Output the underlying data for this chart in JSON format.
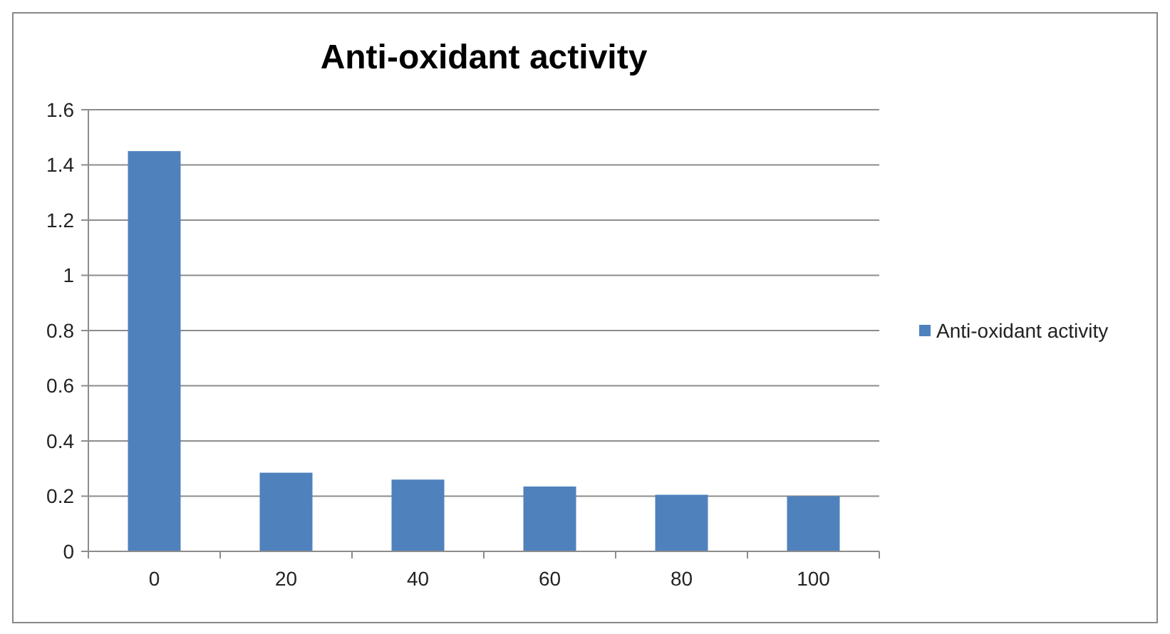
{
  "chart_data": {
    "type": "bar",
    "title": "Anti-oxidant activity",
    "categories": [
      "0",
      "20",
      "40",
      "60",
      "80",
      "100"
    ],
    "series": [
      {
        "name": "Anti-oxidant activity",
        "color": "#4f81bd",
        "values": [
          1.45,
          0.285,
          0.26,
          0.235,
          0.205,
          0.2
        ]
      }
    ],
    "ylim": [
      0,
      1.6
    ],
    "yticks": [
      0,
      {
        "value": 0.2,
        "label": "0.2"
      },
      {
        "value": 0.4,
        "label": "0.4"
      },
      {
        "value": 0.6,
        "label": "0.6"
      },
      {
        "value": 0.8,
        "label": "0.8"
      },
      1,
      {
        "value": 1.2,
        "label": "1.2"
      },
      {
        "value": 1.4,
        "label": "1.4"
      },
      {
        "value": 1.6,
        "label": "1.6"
      }
    ],
    "grid": "y",
    "legend": "right"
  }
}
